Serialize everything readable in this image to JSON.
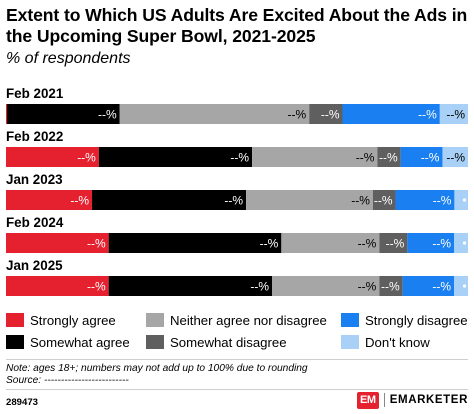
{
  "header": {
    "title": "Extent to Which US Adults Are Excited About the Ads in the Upcoming Super Bowl, 2021-2025",
    "subtitle": "% of respondents"
  },
  "chart_data": {
    "type": "bar",
    "orientation": "horizontal",
    "stacked": true,
    "categories": [
      "Feb 2021",
      "Feb 2022",
      "Jan 2023",
      "Feb 2024",
      "Jan 2025"
    ],
    "value_label": "--%",
    "xlim": [
      0,
      100
    ],
    "series": [
      {
        "name": "Strongly agree",
        "color": "#e5202f",
        "text_color": "#ffffff",
        "values": [
          0.2,
          20,
          19,
          22,
          22
        ]
      },
      {
        "name": "Somewhat agree",
        "color": "#000000",
        "text_color": "#ffffff",
        "values": [
          22,
          33,
          34,
          37,
          35
        ]
      },
      {
        "name": "Neither agree nor disagree",
        "color": "#a6a6a6",
        "text_color": "#000000",
        "values": [
          37,
          27,
          28,
          21,
          23
        ]
      },
      {
        "name": "Somewhat disagree",
        "color": "#5f5f5f",
        "text_color": "#ffffff",
        "values": [
          6.5,
          5,
          5,
          6,
          5
        ]
      },
      {
        "name": "Strongly disagree",
        "color": "#1a7ff0",
        "text_color": "#ffffff",
        "values": [
          19,
          9,
          13,
          10,
          11
        ]
      },
      {
        "name": "Don't know",
        "color": "#a9d1f7",
        "text_color": "#000000",
        "values": [
          5.5,
          5.5,
          3,
          3,
          3
        ]
      }
    ],
    "legend_position": "bottom",
    "grid": false
  },
  "footer": {
    "note": "Note: ages 18+; numbers may not add up to 100% due to rounding",
    "source": "Source: -------------------------",
    "chart_id": "289473",
    "brand_logo": "EM",
    "brand_name": "EMARKETER"
  }
}
